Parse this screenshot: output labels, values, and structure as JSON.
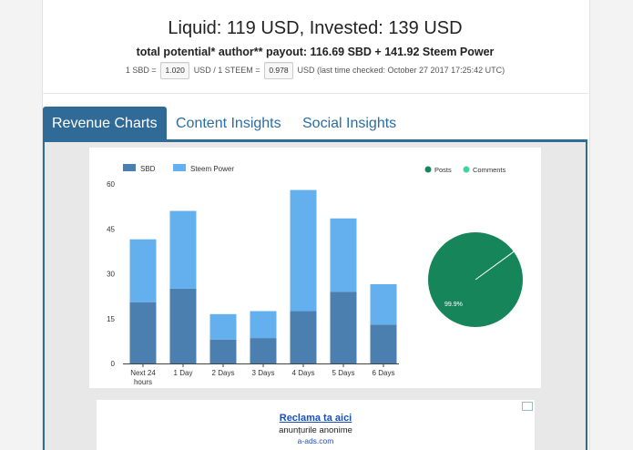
{
  "header": {
    "headline": "Liquid: 119 USD, Invested: 139 USD",
    "subline": "total potential* author** payout: 116.69 SBD + 141.92 Steem Power",
    "rate_prefix": "1 SBD =",
    "sbd_rate": "1.020",
    "rate_middle": "USD / 1 STEEM =",
    "steem_rate": "0.978",
    "rate_suffix": "USD (last time checked: October 27 2017 17:25:42 UTC)"
  },
  "tabs": [
    {
      "label": "Revenue Charts",
      "active": true
    },
    {
      "label": "Content Insights",
      "active": false
    },
    {
      "label": "Social Insights",
      "active": false
    }
  ],
  "chart_data": [
    {
      "type": "bar",
      "stacked": true,
      "categories": [
        "Next 24 hours",
        "1 Day",
        "2 Days",
        "3 Days",
        "4 Days",
        "5 Days",
        "6 Days"
      ],
      "series": [
        {
          "name": "SBD",
          "color": "#4a7fb0",
          "values": [
            20.5,
            25,
            8,
            8.5,
            17.5,
            24,
            13
          ]
        },
        {
          "name": "Steem Power",
          "color": "#64b0ee",
          "values": [
            21,
            26,
            8.5,
            9,
            40.5,
            24.5,
            13.5
          ]
        }
      ],
      "yticks": [
        0,
        15,
        30,
        45,
        60
      ],
      "ylim": [
        0,
        60
      ],
      "legend": "top-left",
      "grid": false
    },
    {
      "type": "pie",
      "slices": [
        {
          "name": "Posts",
          "value": 99.9,
          "color": "#16865a",
          "label": "99.9%"
        },
        {
          "name": "Comments",
          "value": 0.1,
          "color": "#3fd598"
        }
      ],
      "legend": "top"
    }
  ],
  "ad": {
    "title": "Reclama ta aici",
    "subtitle": "anunțurile anonime",
    "link": "a-ads.com"
  }
}
